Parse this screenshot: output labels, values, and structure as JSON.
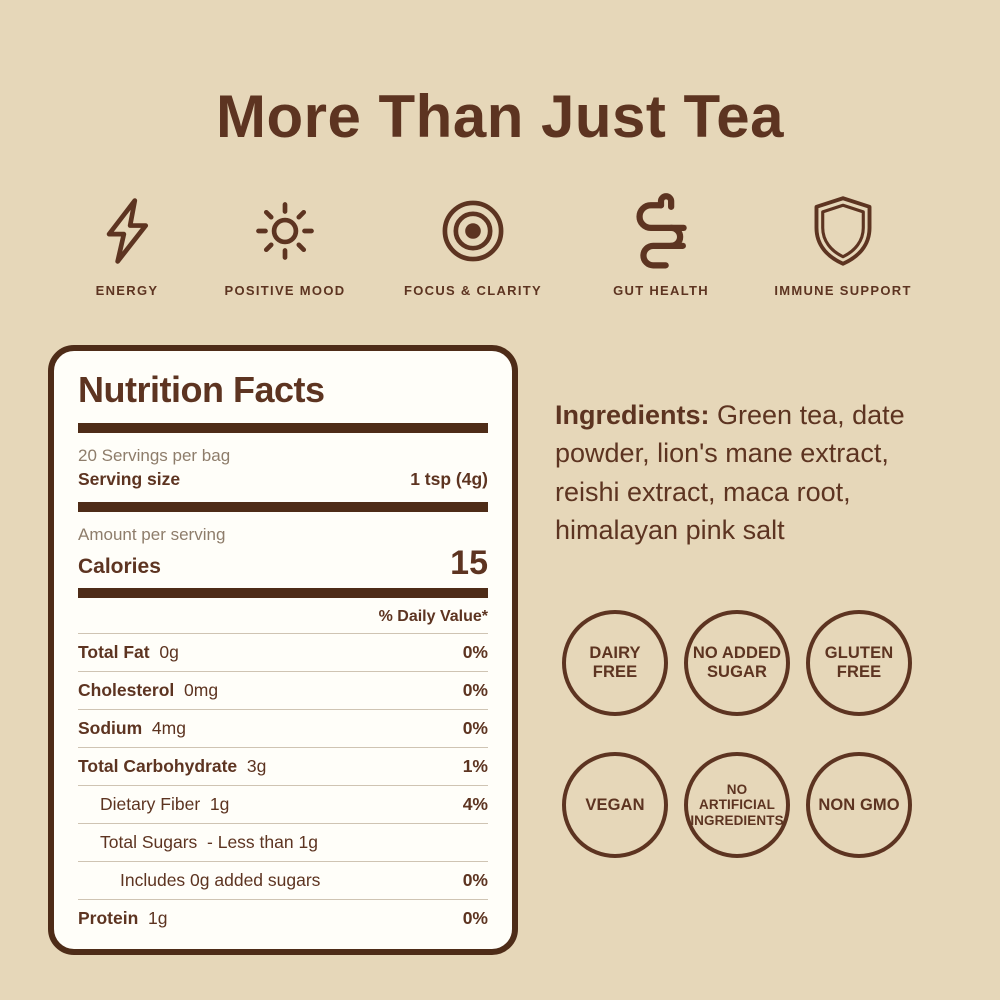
{
  "colors": {
    "background": "#e6d7b9",
    "brown": "#5d3421",
    "dark_brown": "#4e2c18",
    "muted_text": "#8e7d6b",
    "divider": "#cfc4b3",
    "panel_background": "#fffef9"
  },
  "title": "More Than Just Tea",
  "benefits": [
    {
      "icon": "lightning-icon",
      "label": "ENERGY"
    },
    {
      "icon": "sun-icon",
      "label": "POSITIVE MOOD"
    },
    {
      "icon": "target-icon",
      "label": "FOCUS & CLARITY"
    },
    {
      "icon": "gut-icon",
      "label": "GUT HEALTH"
    },
    {
      "icon": "shield-icon",
      "label": "IMMUNE SUPPORT"
    }
  ],
  "nutrition_facts": {
    "title": "Nutrition Facts",
    "servings_per_container": "20 Servings per bag",
    "serving_size_label": "Serving size",
    "serving_size_value": "1 tsp (4g)",
    "amount_per_serving_label": "Amount per serving",
    "calories_label": "Calories",
    "calories_value": "15",
    "daily_value_header": "% Daily Value*",
    "rows": [
      {
        "name": "Total Fat",
        "amount": "0g",
        "dv": "0%",
        "bold": true,
        "indent": 0
      },
      {
        "name": "Cholesterol",
        "amount": "0mg",
        "dv": "0%",
        "bold": true,
        "indent": 0
      },
      {
        "name": "Sodium",
        "amount": "4mg",
        "dv": "0%",
        "bold": true,
        "indent": 0
      },
      {
        "name": "Total Carbohydrate",
        "amount": "3g",
        "dv": "1%",
        "bold": true,
        "indent": 0
      },
      {
        "name": "Dietary Fiber",
        "amount": "1g",
        "dv": "4%",
        "bold": false,
        "indent": 1
      },
      {
        "name": "Total Sugars",
        "amount": "- Less than 1g",
        "dv": "",
        "bold": false,
        "indent": 1
      },
      {
        "name": "Includes 0g added sugars",
        "amount": "",
        "dv": "0%",
        "bold": false,
        "indent": 2
      },
      {
        "name": "Protein",
        "amount": "1g",
        "dv": "0%",
        "bold": true,
        "indent": 0
      }
    ]
  },
  "ingredients": {
    "label": "Ingredients:",
    "text": "Green tea, date powder, lion's mane extract, reishi extract, maca root, himalayan pink salt"
  },
  "badges": [
    {
      "lines": [
        "DAIRY",
        "FREE"
      ]
    },
    {
      "lines": [
        "NO ADDED",
        "SUGAR"
      ]
    },
    {
      "lines": [
        "GLUTEN",
        "FREE"
      ]
    },
    {
      "lines": [
        "VEGAN"
      ]
    },
    {
      "lines": [
        "NO",
        "ARTIFICIAL",
        "INGREDIENTS"
      ]
    },
    {
      "lines": [
        "NON GMO"
      ]
    }
  ]
}
